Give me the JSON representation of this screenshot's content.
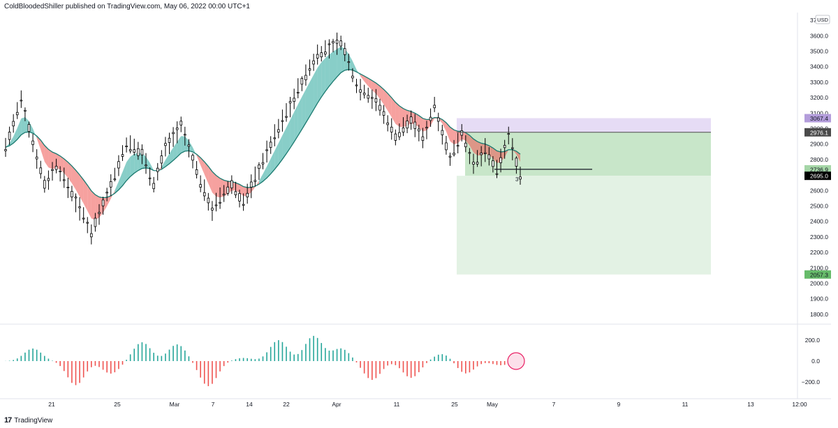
{
  "header": {
    "published_text": "ColdBloodedShiller published on TradingView.com, May 06, 2022 00:00 UTC+1"
  },
  "footer": {
    "logo_glyph": "17",
    "brand": "TradingView"
  },
  "chart_data": [
    {
      "type": "candlestick",
      "currency_label": "USD",
      "ylim": [
        1750,
        3750
      ],
      "y_ticks": [
        "3700.0",
        "3600.0",
        "3500.0",
        "3400.0",
        "3300.0",
        "3200.0",
        "3100.0",
        "3000.0",
        "2900.0",
        "2800.0",
        "2700.0",
        "2600.0",
        "2500.0",
        "2400.0",
        "2300.0",
        "2200.0",
        "2100.0",
        "2000.0",
        "1900.0",
        "1800.0"
      ],
      "x_ticks": [
        "21",
        "25",
        "Mar",
        "7",
        "14",
        "22",
        "Apr",
        "11",
        "25",
        "May",
        "7",
        "9",
        "11",
        "13",
        "12:00"
      ],
      "price_path": [
        {
          "t": 0,
          "price": 2880
        },
        {
          "t": 4,
          "price": 3180
        },
        {
          "t": 10,
          "price": 2640
        },
        {
          "t": 13,
          "price": 2760
        },
        {
          "t": 17,
          "price": 2580
        },
        {
          "t": 22,
          "price": 2330
        },
        {
          "t": 28,
          "price": 2700
        },
        {
          "t": 31,
          "price": 2900
        },
        {
          "t": 35,
          "price": 2840
        },
        {
          "t": 38,
          "price": 2640
        },
        {
          "t": 41,
          "price": 2880
        },
        {
          "t": 45,
          "price": 3020
        },
        {
          "t": 50,
          "price": 2650
        },
        {
          "t": 53,
          "price": 2480
        },
        {
          "t": 58,
          "price": 2640
        },
        {
          "t": 61,
          "price": 2520
        },
        {
          "t": 68,
          "price": 2900
        },
        {
          "t": 75,
          "price": 3250
        },
        {
          "t": 80,
          "price": 3480
        },
        {
          "t": 86,
          "price": 3560
        },
        {
          "t": 90,
          "price": 3280
        },
        {
          "t": 95,
          "price": 3180
        },
        {
          "t": 100,
          "price": 2950
        },
        {
          "t": 104,
          "price": 3060
        },
        {
          "t": 107,
          "price": 2930
        },
        {
          "t": 110,
          "price": 3150
        },
        {
          "t": 114,
          "price": 2800
        },
        {
          "t": 117,
          "price": 2980
        },
        {
          "t": 120,
          "price": 2760
        },
        {
          "t": 123,
          "price": 2860
        },
        {
          "t": 126,
          "price": 2720
        },
        {
          "t": 129,
          "price": 2950
        },
        {
          "t": 132,
          "price": 2695
        }
      ],
      "last_label": "3",
      "price_labels": [
        {
          "value": 3067.4,
          "text": "3067.4",
          "color": "#b39ddb",
          "text_color": "#131722"
        },
        {
          "value": 2976.1,
          "text": "2976.1",
          "color": "#4a4a4a",
          "text_color": "#ffffff"
        },
        {
          "value": 2736.9,
          "text": "2736.9",
          "color": "#a5d6a7",
          "text_color": "#131722"
        },
        {
          "value": 2695.0,
          "text": "2695.0",
          "color": "#000000",
          "text_color": "#ffffff"
        },
        {
          "value": 2057.3,
          "text": "2057.3",
          "color": "#66bb6a",
          "text_color": "#131722"
        }
      ],
      "zones": [
        {
          "name": "risk",
          "from": 2976.1,
          "to": 3067.4,
          "color": "#e6dcf5"
        },
        {
          "name": "target-upper",
          "from": 2695.0,
          "to": 2976.1,
          "color": "#c8e6c9"
        },
        {
          "name": "target-lower",
          "from": 2057.3,
          "to": 2695.0,
          "color": "#e3f2e4"
        }
      ],
      "ribbon_colors": {
        "bull": "#26a69a",
        "bear": "#ef5350"
      },
      "grid": false
    },
    {
      "type": "histogram",
      "ylim": [
        -260,
        260
      ],
      "y_ticks": [
        "200.0",
        "0.0",
        "−200.0"
      ],
      "colors": {
        "positive": "#26a69a",
        "negative": "#ef5350"
      },
      "waves": [
        {
          "center": 7,
          "amp": 120
        },
        {
          "center": 18,
          "amp": -230
        },
        {
          "center": 27,
          "amp": -120
        },
        {
          "center": 35,
          "amp": 180
        },
        {
          "center": 44,
          "amp": 160
        },
        {
          "center": 52,
          "amp": -240
        },
        {
          "center": 61,
          "amp": 30
        },
        {
          "center": 70,
          "amp": 200
        },
        {
          "center": 79,
          "amp": 240
        },
        {
          "center": 86,
          "amp": 120
        },
        {
          "center": 94,
          "amp": -180
        },
        {
          "center": 104,
          "amp": -160
        },
        {
          "center": 112,
          "amp": 70
        },
        {
          "center": 118,
          "amp": -120
        },
        {
          "center": 127,
          "amp": -40
        }
      ]
    }
  ]
}
